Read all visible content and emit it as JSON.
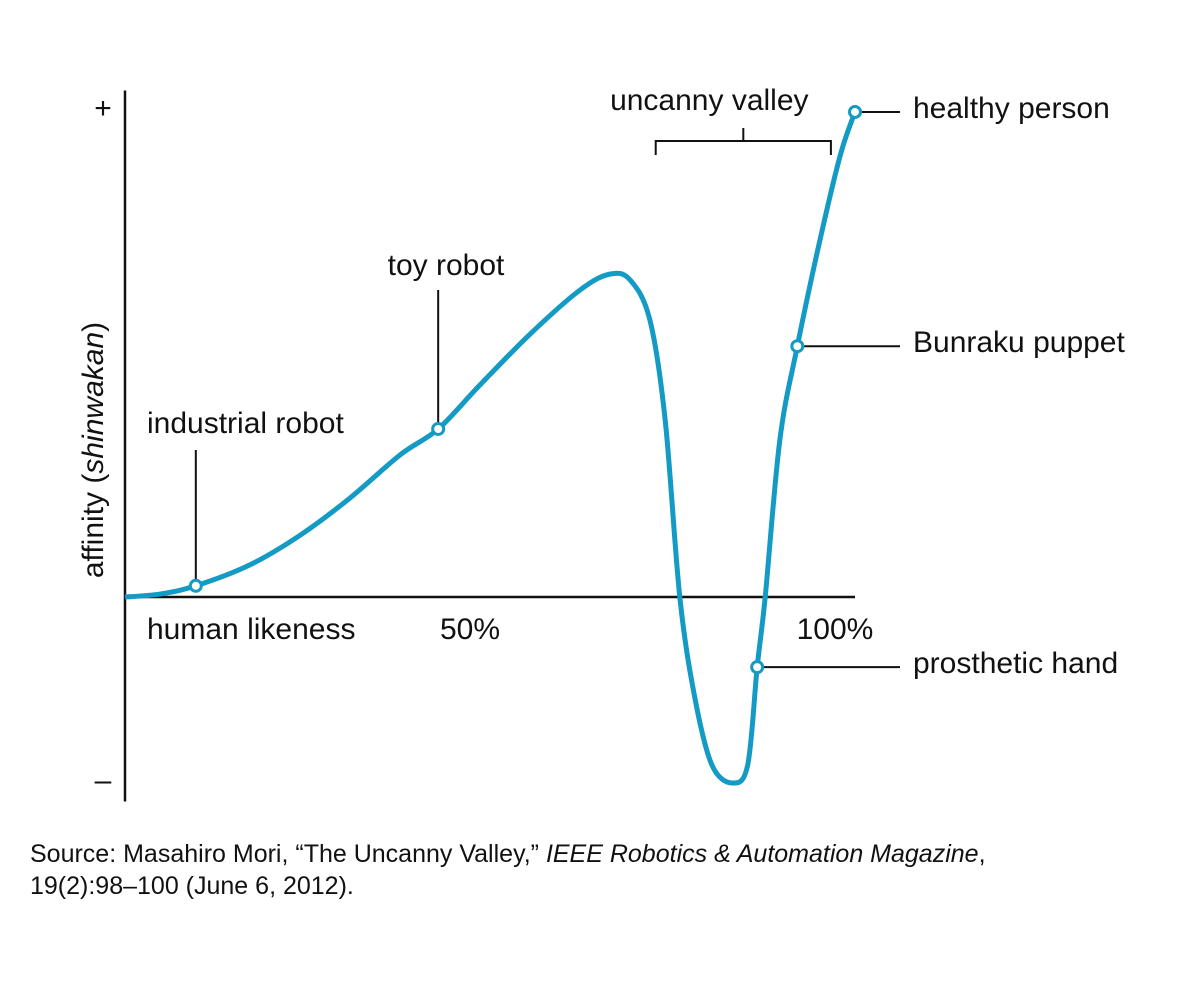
{
  "chart_data": {
    "type": "line",
    "xlabel": "human likeness",
    "ylabel": [
      "affinity (",
      "shinwakan",
      ")"
    ],
    "xlim": [
      0,
      100
    ],
    "ylim": [
      -42,
      104
    ],
    "xticks": [
      {
        "value": 50,
        "label": "50%"
      },
      {
        "value": 100,
        "label": "100%"
      }
    ],
    "yticks": [
      {
        "value": 100,
        "label": "+"
      },
      {
        "value": -38,
        "label": "–"
      }
    ],
    "series": [
      {
        "color": "#139ac5",
        "x": [
          0,
          4.8,
          9.7,
          17.1,
          24,
          30.8,
          37.7,
          42.9,
          48.6,
          55.5,
          62.3,
          66.4,
          69.2,
          71.9,
          74,
          76,
          78.1,
          80.4,
          83.2,
          85.3,
          86.6,
          87.7,
          89.7,
          92.1,
          95.2,
          98,
          100
        ],
        "values": [
          0,
          0.6,
          2.3,
          6.6,
          12.7,
          20.3,
          29.2,
          34.5,
          43.5,
          54,
          63,
          66.3,
          65.1,
          56.9,
          36.3,
          0,
          -21,
          -34.5,
          -38.2,
          -34.5,
          -14.4,
          0,
          32.2,
          51.5,
          73.3,
          90.8,
          99.6
        ]
      }
    ],
    "annotations": [
      {
        "label": "industrial robot",
        "x": 9.7,
        "y": 2.3
      },
      {
        "label": "toy robot",
        "x": 42.9,
        "y": 34.5
      },
      {
        "label": "Bunraku puppet",
        "x": 92.1,
        "y": 51.5
      },
      {
        "label": "prosthetic hand",
        "x": 86.6,
        "y": -14.4
      },
      {
        "label": "healthy person",
        "x": 100,
        "y": 99.6
      }
    ],
    "bracket": {
      "label": "uncanny valley",
      "x": [
        72.7,
        96.7
      ]
    }
  },
  "source": [
    [
      "Source: Masahiro Mori, “The Uncanny Valley,” ",
      "IEEE Robotics & Automation Magazine",
      ","
    ],
    [
      "19(2):98–100 (June 6, 2012)."
    ]
  ]
}
